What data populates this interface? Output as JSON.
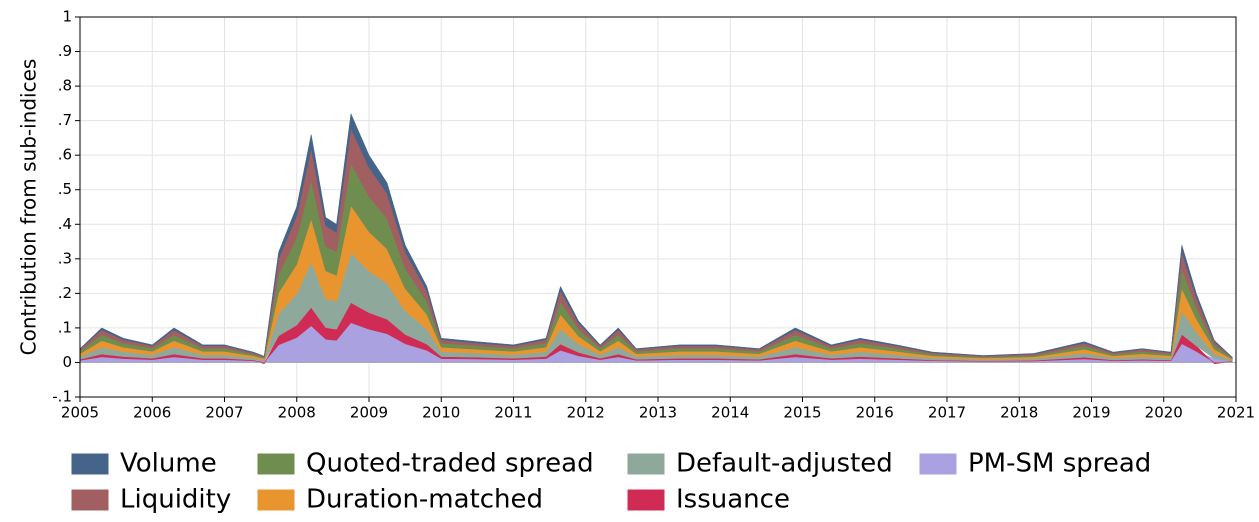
{
  "chart_data": {
    "type": "stacked-area",
    "y_label": "Contribution from sub-indices",
    "x": [
      2005.0,
      2005.3,
      2005.6,
      2006.0,
      2006.3,
      2006.7,
      2007.0,
      2007.4,
      2007.55,
      2007.75,
      2008.0,
      2008.2,
      2008.4,
      2008.55,
      2008.75,
      2009.0,
      2009.25,
      2009.5,
      2009.8,
      2010.0,
      2010.5,
      2011.0,
      2011.45,
      2011.65,
      2011.9,
      2012.2,
      2012.45,
      2012.7,
      2013.3,
      2013.8,
      2014.4,
      2014.9,
      2015.4,
      2015.8,
      2016.3,
      2016.8,
      2017.5,
      2018.2,
      2018.9,
      2019.3,
      2019.7,
      2020.1,
      2020.25,
      2020.45,
      2020.7,
      2020.95
    ],
    "xlim": [
      2005,
      2021
    ],
    "xticks": [
      2005,
      2006,
      2007,
      2008,
      2009,
      2010,
      2011,
      2012,
      2013,
      2014,
      2015,
      2016,
      2017,
      2018,
      2019,
      2020,
      2021
    ],
    "ylim": [
      -0.1,
      1
    ],
    "yticks": [
      {
        "value": -0.1,
        "label": "-.1"
      },
      0,
      {
        "value": 0.1,
        "label": ".1"
      },
      {
        "value": 0.2,
        "label": ".2"
      },
      {
        "value": 0.3,
        "label": ".3"
      },
      {
        "value": 0.4,
        "label": ".4"
      },
      {
        "value": 0.5,
        "label": ".5"
      },
      {
        "value": 0.6,
        "label": ".6"
      },
      {
        "value": 0.7,
        "label": ".7"
      },
      {
        "value": 0.8,
        "label": ".8"
      },
      {
        "value": 0.9,
        "label": ".9"
      },
      1
    ],
    "grid": true,
    "series": [
      {
        "name": "Volume",
        "color": "#446489",
        "values": [
          0.002,
          0.006,
          0.004,
          0.003,
          0.006,
          0.003,
          0.003,
          0.002,
          0.001,
          0.019,
          0.027,
          0.04,
          0.025,
          0.024,
          0.043,
          0.036,
          0.031,
          0.02,
          0.013,
          0.004,
          0.004,
          0.003,
          0.004,
          0.013,
          0.007,
          0.003,
          0.006,
          0.002,
          0.003,
          0.003,
          0.002,
          0.006,
          0.003,
          0.004,
          0.003,
          0.002,
          0.001,
          0.002,
          0.004,
          0.002,
          0.002,
          0.002,
          0.02,
          0.012,
          0.004,
          0.001
        ]
      },
      {
        "name": "Liquidity",
        "color": "#a15f62",
        "values": [
          0.006,
          0.014,
          0.01,
          0.007,
          0.014,
          0.007,
          0.007,
          0.004,
          0.003,
          0.045,
          0.063,
          0.092,
          0.059,
          0.056,
          0.101,
          0.084,
          0.073,
          0.048,
          0.031,
          0.01,
          0.008,
          0.007,
          0.01,
          0.031,
          0.017,
          0.007,
          0.014,
          0.006,
          0.007,
          0.007,
          0.006,
          0.014,
          0.007,
          0.01,
          0.007,
          0.004,
          0.003,
          0.004,
          0.008,
          0.004,
          0.006,
          0.004,
          0.048,
          0.028,
          0.01,
          0.002
        ]
      },
      {
        "name": "Quoted-traded spread",
        "color": "#6e8d4f",
        "values": [
          0.007,
          0.017,
          0.012,
          0.009,
          0.017,
          0.009,
          0.009,
          0.005,
          0.003,
          0.054,
          0.077,
          0.112,
          0.071,
          0.068,
          0.122,
          0.102,
          0.088,
          0.058,
          0.037,
          0.012,
          0.01,
          0.009,
          0.012,
          0.037,
          0.02,
          0.009,
          0.017,
          0.007,
          0.009,
          0.009,
          0.007,
          0.017,
          0.009,
          0.012,
          0.009,
          0.005,
          0.003,
          0.004,
          0.01,
          0.005,
          0.007,
          0.005,
          0.058,
          0.034,
          0.012,
          0.003
        ]
      },
      {
        "name": "Duration-matched",
        "color": "#e9952f",
        "values": [
          0.008,
          0.019,
          0.013,
          0.01,
          0.019,
          0.01,
          0.01,
          0.006,
          0.004,
          0.061,
          0.086,
          0.125,
          0.08,
          0.076,
          0.137,
          0.114,
          0.099,
          0.065,
          0.042,
          0.013,
          0.011,
          0.01,
          0.013,
          0.042,
          0.023,
          0.01,
          0.019,
          0.008,
          0.01,
          0.01,
          0.008,
          0.019,
          0.01,
          0.013,
          0.01,
          0.006,
          0.004,
          0.005,
          0.011,
          0.006,
          0.008,
          0.006,
          0.065,
          0.038,
          0.013,
          0.003
        ]
      },
      {
        "name": "Default-adjusted",
        "color": "#8fa89c",
        "values": [
          0.008,
          0.02,
          0.014,
          0.01,
          0.02,
          0.01,
          0.01,
          0.006,
          0.004,
          0.064,
          0.09,
          0.132,
          0.084,
          0.08,
          0.144,
          0.12,
          0.104,
          0.068,
          0.044,
          0.014,
          0.012,
          0.01,
          0.014,
          0.044,
          0.024,
          0.01,
          0.02,
          0.008,
          0.01,
          0.01,
          0.008,
          0.02,
          0.01,
          0.014,
          0.01,
          0.006,
          0.004,
          0.005,
          0.012,
          0.006,
          0.008,
          0.006,
          0.068,
          0.04,
          0.014,
          0.003
        ]
      },
      {
        "name": "Issuance",
        "color": "#cf2b54",
        "values": [
          0.003,
          0.008,
          0.006,
          0.004,
          0.008,
          0.004,
          0.004,
          0.002,
          -0.004,
          0.026,
          0.036,
          0.053,
          0.034,
          0.032,
          0.058,
          0.048,
          0.042,
          0.027,
          0.018,
          0.006,
          0.005,
          0.004,
          0.006,
          0.018,
          0.01,
          0.004,
          0.008,
          0.003,
          0.004,
          0.004,
          0.003,
          0.008,
          0.004,
          0.006,
          0.004,
          0.002,
          0.002,
          0.002,
          0.005,
          0.002,
          0.003,
          0.002,
          0.027,
          0.016,
          -0.004,
          0.001
        ]
      },
      {
        "name": "PM-SM spread",
        "color": "#a9a1e0",
        "values": [
          0.006,
          0.016,
          0.011,
          0.008,
          0.016,
          0.008,
          0.008,
          0.005,
          0.003,
          0.051,
          0.072,
          0.106,
          0.067,
          0.064,
          0.115,
          0.096,
          0.083,
          0.054,
          0.035,
          0.011,
          0.01,
          0.008,
          0.011,
          0.035,
          0.019,
          0.008,
          0.016,
          0.006,
          0.008,
          0.008,
          0.006,
          0.016,
          0.008,
          0.011,
          0.008,
          0.005,
          0.003,
          0.004,
          0.01,
          0.005,
          0.006,
          0.005,
          0.054,
          0.032,
          0.011,
          0.002
        ]
      }
    ]
  }
}
